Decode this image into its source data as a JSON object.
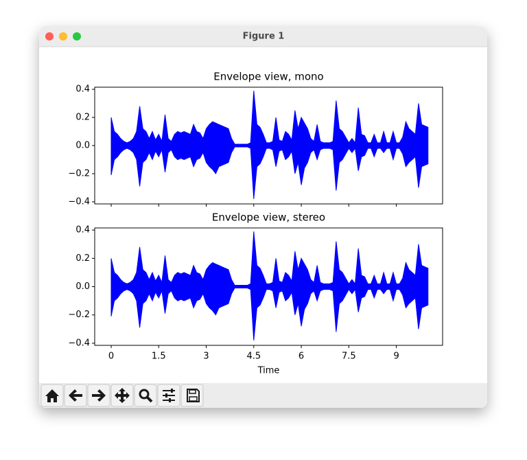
{
  "window": {
    "title": "Figure 1"
  },
  "chart_data": [
    {
      "type": "envelope",
      "title": "Envelope view, mono",
      "color": "#0000ff",
      "xlim": [
        -0.52,
        10.46
      ],
      "ylim": [
        -0.415,
        0.415
      ],
      "xticks": [
        0,
        1.5,
        3,
        4.5,
        6,
        7.5,
        9
      ],
      "xtick_labels": false,
      "yticks": [
        {
          "value": -0.4,
          "label": "−0.4"
        },
        {
          "value": -0.2,
          "label": "−0.2"
        },
        {
          "value": 0,
          "label": "0.0"
        },
        0.2,
        0.4
      ],
      "x": [
        0,
        0.1,
        0.2,
        0.3,
        0.4,
        0.5,
        0.6,
        0.7,
        0.8,
        0.9,
        1,
        1.1,
        1.2,
        1.3,
        1.4,
        1.5,
        1.6,
        1.7,
        1.8,
        1.9,
        2,
        2.1,
        2.2,
        2.3,
        2.4,
        2.5,
        2.6,
        2.7,
        2.8,
        2.9,
        3,
        3.1,
        3.2,
        3.3,
        3.4,
        3.5,
        3.6,
        3.7,
        3.8,
        3.9,
        4,
        4.1,
        4.2,
        4.3,
        4.4,
        4.5,
        4.6,
        4.7,
        4.8,
        4.9,
        5,
        5.1,
        5.2,
        5.3,
        5.4,
        5.5,
        5.6,
        5.7,
        5.8,
        5.9,
        6,
        6.1,
        6.2,
        6.3,
        6.4,
        6.5,
        6.6,
        6.7,
        6.8,
        6.9,
        7,
        7.1,
        7.2,
        7.3,
        7.4,
        7.5,
        7.6,
        7.7,
        7.8,
        7.9,
        8,
        8.1,
        8.2,
        8.3,
        8.4,
        8.5,
        8.6,
        8.7,
        8.8,
        8.9,
        9,
        9.1,
        9.2,
        9.3,
        9.4,
        9.5,
        9.6,
        9.7,
        9.8,
        9.9,
        10
      ],
      "upper": [
        0.2,
        0.1,
        0.08,
        0.05,
        0.03,
        0.02,
        0.03,
        0.05,
        0.1,
        0.28,
        0.12,
        0.1,
        0.05,
        0.1,
        0.04,
        0.08,
        0.03,
        0.22,
        0.05,
        0.03,
        0.08,
        0.1,
        0.09,
        0.1,
        0.09,
        0.08,
        0.15,
        0.1,
        0.09,
        0.05,
        0.12,
        0.15,
        0.17,
        0.16,
        0.15,
        0.14,
        0.13,
        0.12,
        0.05,
        0.01,
        0.01,
        0.01,
        0.01,
        0.01,
        0.02,
        0.39,
        0.15,
        0.13,
        0.08,
        0.02,
        0.02,
        0.03,
        0.2,
        0.04,
        0.03,
        0.1,
        0.08,
        0.04,
        0.25,
        0.12,
        0.2,
        0.16,
        0.12,
        0.05,
        0.03,
        0.15,
        0.03,
        0.02,
        0.02,
        0.02,
        0.03,
        0.32,
        0.12,
        0.1,
        0.06,
        0.02,
        0.05,
        0.02,
        0.27,
        0.08,
        0.07,
        0.02,
        0.02,
        0.08,
        0.02,
        0.02,
        0.1,
        0.02,
        0.02,
        0.1,
        0.02,
        0.02,
        0.06,
        0.17,
        0.12,
        0.1,
        0.08,
        0.3,
        0.15,
        0.14,
        0.13
      ],
      "lower": [
        -0.21,
        -0.1,
        -0.08,
        -0.05,
        -0.03,
        -0.02,
        -0.03,
        -0.05,
        -0.1,
        -0.29,
        -0.12,
        -0.1,
        -0.05,
        -0.1,
        -0.04,
        -0.08,
        -0.03,
        -0.19,
        -0.05,
        -0.03,
        -0.08,
        -0.1,
        -0.09,
        -0.1,
        -0.09,
        -0.08,
        -0.15,
        -0.1,
        -0.09,
        -0.05,
        -0.12,
        -0.15,
        -0.17,
        -0.2,
        -0.15,
        -0.14,
        -0.13,
        -0.12,
        -0.05,
        -0.01,
        -0.01,
        -0.01,
        -0.01,
        -0.01,
        -0.02,
        -0.38,
        -0.15,
        -0.13,
        -0.08,
        -0.02,
        -0.02,
        -0.03,
        -0.15,
        -0.04,
        -0.03,
        -0.1,
        -0.08,
        -0.04,
        -0.2,
        -0.12,
        -0.28,
        -0.16,
        -0.12,
        -0.05,
        -0.03,
        -0.1,
        -0.03,
        -0.02,
        -0.02,
        -0.02,
        -0.03,
        -0.32,
        -0.12,
        -0.1,
        -0.06,
        -0.02,
        -0.05,
        -0.02,
        -0.18,
        -0.08,
        -0.07,
        -0.02,
        -0.02,
        -0.08,
        -0.02,
        -0.02,
        -0.05,
        -0.02,
        -0.02,
        -0.1,
        -0.02,
        -0.02,
        -0.06,
        -0.15,
        -0.12,
        -0.1,
        -0.08,
        -0.3,
        -0.15,
        -0.14,
        -0.13
      ]
    },
    {
      "type": "envelope",
      "title": "Envelope view, stereo",
      "xlabel": "Time",
      "color": "#0000ff",
      "xlim": [
        -0.52,
        10.46
      ],
      "ylim": [
        -0.415,
        0.415
      ],
      "xticks": [
        0,
        1.5,
        3,
        4.5,
        6,
        7.5,
        9
      ],
      "xtick_labels": true,
      "yticks": [
        {
          "value": -0.4,
          "label": "−0.4"
        },
        {
          "value": -0.2,
          "label": "−0.2"
        },
        {
          "value": 0,
          "label": "0.0"
        },
        0.2,
        0.4
      ],
      "x": [
        0,
        0.1,
        0.2,
        0.3,
        0.4,
        0.5,
        0.6,
        0.7,
        0.8,
        0.9,
        1,
        1.1,
        1.2,
        1.3,
        1.4,
        1.5,
        1.6,
        1.7,
        1.8,
        1.9,
        2,
        2.1,
        2.2,
        2.3,
        2.4,
        2.5,
        2.6,
        2.7,
        2.8,
        2.9,
        3,
        3.1,
        3.2,
        3.3,
        3.4,
        3.5,
        3.6,
        3.7,
        3.8,
        3.9,
        4,
        4.1,
        4.2,
        4.3,
        4.4,
        4.5,
        4.6,
        4.7,
        4.8,
        4.9,
        5,
        5.1,
        5.2,
        5.3,
        5.4,
        5.5,
        5.6,
        5.7,
        5.8,
        5.9,
        6,
        6.1,
        6.2,
        6.3,
        6.4,
        6.5,
        6.6,
        6.7,
        6.8,
        6.9,
        7,
        7.1,
        7.2,
        7.3,
        7.4,
        7.5,
        7.6,
        7.7,
        7.8,
        7.9,
        8,
        8.1,
        8.2,
        8.3,
        8.4,
        8.5,
        8.6,
        8.7,
        8.8,
        8.9,
        9,
        9.1,
        9.2,
        9.3,
        9.4,
        9.5,
        9.6,
        9.7,
        9.8,
        9.9,
        10
      ],
      "upper": [
        0.2,
        0.1,
        0.08,
        0.05,
        0.03,
        0.02,
        0.03,
        0.05,
        0.1,
        0.28,
        0.12,
        0.1,
        0.05,
        0.1,
        0.04,
        0.08,
        0.03,
        0.22,
        0.05,
        0.03,
        0.08,
        0.1,
        0.09,
        0.1,
        0.09,
        0.08,
        0.15,
        0.1,
        0.09,
        0.05,
        0.12,
        0.15,
        0.17,
        0.16,
        0.15,
        0.14,
        0.13,
        0.12,
        0.05,
        0.01,
        0.01,
        0.01,
        0.01,
        0.01,
        0.02,
        0.39,
        0.15,
        0.13,
        0.08,
        0.02,
        0.02,
        0.03,
        0.2,
        0.04,
        0.03,
        0.1,
        0.08,
        0.04,
        0.25,
        0.12,
        0.2,
        0.16,
        0.12,
        0.05,
        0.03,
        0.15,
        0.03,
        0.02,
        0.02,
        0.02,
        0.03,
        0.32,
        0.12,
        0.1,
        0.06,
        0.02,
        0.05,
        0.02,
        0.27,
        0.08,
        0.07,
        0.02,
        0.02,
        0.08,
        0.02,
        0.02,
        0.1,
        0.02,
        0.02,
        0.1,
        0.02,
        0.02,
        0.06,
        0.17,
        0.12,
        0.1,
        0.08,
        0.3,
        0.15,
        0.14,
        0.13
      ],
      "lower": [
        -0.21,
        -0.1,
        -0.08,
        -0.05,
        -0.03,
        -0.02,
        -0.03,
        -0.05,
        -0.1,
        -0.29,
        -0.12,
        -0.1,
        -0.05,
        -0.1,
        -0.04,
        -0.08,
        -0.03,
        -0.19,
        -0.05,
        -0.03,
        -0.08,
        -0.1,
        -0.09,
        -0.1,
        -0.09,
        -0.08,
        -0.15,
        -0.1,
        -0.09,
        -0.05,
        -0.12,
        -0.15,
        -0.17,
        -0.2,
        -0.15,
        -0.14,
        -0.13,
        -0.12,
        -0.05,
        -0.01,
        -0.01,
        -0.01,
        -0.01,
        -0.01,
        -0.02,
        -0.38,
        -0.15,
        -0.13,
        -0.08,
        -0.02,
        -0.02,
        -0.03,
        -0.15,
        -0.04,
        -0.03,
        -0.1,
        -0.08,
        -0.04,
        -0.2,
        -0.12,
        -0.28,
        -0.16,
        -0.12,
        -0.05,
        -0.03,
        -0.1,
        -0.03,
        -0.02,
        -0.02,
        -0.02,
        -0.03,
        -0.32,
        -0.12,
        -0.1,
        -0.06,
        -0.02,
        -0.05,
        -0.02,
        -0.18,
        -0.08,
        -0.07,
        -0.02,
        -0.02,
        -0.08,
        -0.02,
        -0.02,
        -0.05,
        -0.02,
        -0.02,
        -0.1,
        -0.02,
        -0.02,
        -0.06,
        -0.15,
        -0.12,
        -0.1,
        -0.08,
        -0.3,
        -0.15,
        -0.14,
        -0.13
      ]
    }
  ]
}
